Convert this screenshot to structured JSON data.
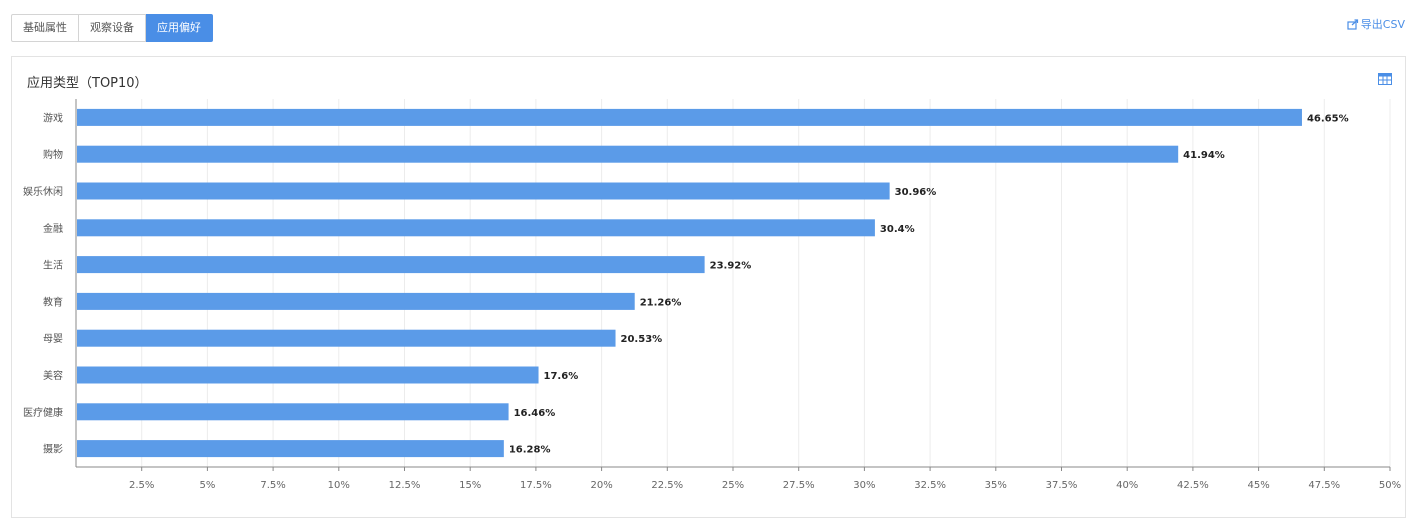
{
  "tabs": [
    {
      "label": "基础属性",
      "active": false
    },
    {
      "label": "观察设备",
      "active": false
    },
    {
      "label": "应用偏好",
      "active": true
    }
  ],
  "export_label": "导出CSV",
  "icons": {
    "export": "export-icon",
    "table": "table-icon"
  },
  "colors": {
    "accent": "#4a8ee6",
    "bar": "#5b9be8",
    "grid": "#ececec"
  },
  "chart_data": {
    "type": "bar",
    "orientation": "horizontal",
    "title": "应用类型（TOP10）",
    "categories": [
      "游戏",
      "购物",
      "娱乐休闲",
      "金融",
      "生活",
      "教育",
      "母婴",
      "美容",
      "医疗健康",
      "摄影"
    ],
    "values": [
      46.65,
      41.94,
      30.96,
      30.4,
      23.92,
      21.26,
      20.53,
      17.6,
      16.46,
      16.28
    ],
    "value_labels": [
      "46.65%",
      "41.94%",
      "30.96%",
      "30.4%",
      "23.92%",
      "21.26%",
      "20.53%",
      "17.6%",
      "16.46%",
      "16.28%"
    ],
    "xlim": [
      0,
      50
    ],
    "x_ticks": [
      2.5,
      5,
      7.5,
      10,
      12.5,
      15,
      17.5,
      20,
      22.5,
      25,
      27.5,
      30,
      32.5,
      35,
      37.5,
      40,
      42.5,
      45,
      47.5,
      50
    ],
    "x_tick_labels": [
      "2.5%",
      "5%",
      "7.5%",
      "10%",
      "12.5%",
      "15%",
      "17.5%",
      "20%",
      "22.5%",
      "25%",
      "27.5%",
      "30%",
      "32.5%",
      "35%",
      "37.5%",
      "40%",
      "42.5%",
      "45%",
      "47.5%",
      "50%"
    ],
    "xlabel": "",
    "ylabel": "",
    "grid": true
  }
}
